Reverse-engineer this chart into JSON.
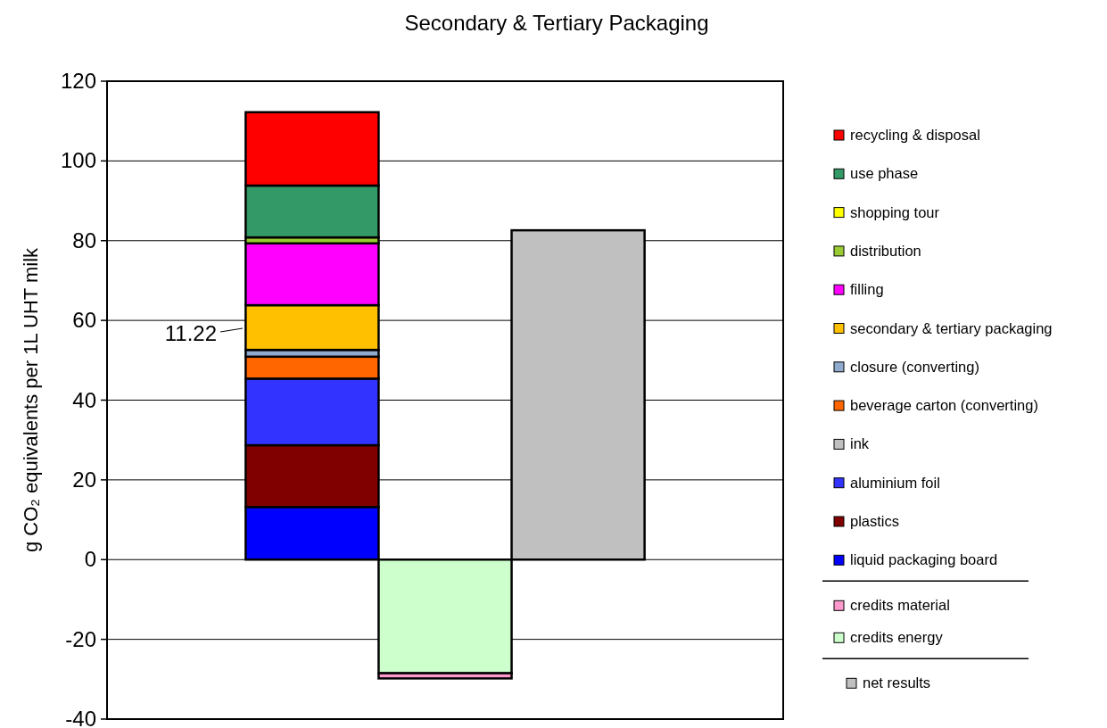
{
  "chart_data": {
    "type": "bar",
    "title": "Secondary & Tertiary Packaging",
    "ylabel": "g CO₂ equivalents per 1L UHT milk",
    "categories": [
      null,
      null,
      null
    ],
    "stacked": true,
    "ylim": [
      -40,
      120
    ],
    "yticks": [
      -40,
      -20,
      0,
      20,
      40,
      60,
      80,
      100,
      120
    ],
    "grid": "y",
    "legend": "right",
    "annotations": [
      "11.22"
    ],
    "series": [
      {
        "name": "liquid packaging board",
        "color": "#0000ff",
        "values": [
          13.2,
          null,
          null
        ]
      },
      {
        "name": "plastics",
        "color": "#800000",
        "values": [
          15.5,
          null,
          null
        ]
      },
      {
        "name": "aluminium foil",
        "color": "#3333ff",
        "values": [
          16.7,
          null,
          null
        ]
      },
      {
        "name": "ink",
        "color": "#c0c0c0",
        "values": [
          0,
          null,
          null
        ]
      },
      {
        "name": "beverage carton (converting)",
        "color": "#ff6600",
        "values": [
          5.5,
          null,
          null
        ]
      },
      {
        "name": "closure (converting)",
        "color": "#8faacc",
        "values": [
          1.7,
          null,
          null
        ]
      },
      {
        "name": "secondary & tertiary packaging",
        "color": "#ffc000",
        "values": [
          11.22,
          null,
          null
        ]
      },
      {
        "name": "filling",
        "color": "#ff00ff",
        "values": [
          15.5,
          null,
          null
        ]
      },
      {
        "name": "distribution",
        "color": "#99cc33",
        "values": [
          1.5,
          null,
          null
        ]
      },
      {
        "name": "shopping tour",
        "color": "#ffff00",
        "values": [
          0,
          null,
          null
        ]
      },
      {
        "name": "use phase",
        "color": "#339966",
        "values": [
          13.0,
          null,
          null
        ]
      },
      {
        "name": "recycling & disposal",
        "color": "#ff0000",
        "values": [
          18.4,
          null,
          null
        ]
      },
      {
        "name": "credits energy",
        "color": "#ccffcc",
        "values": [
          null,
          -28.5,
          null
        ]
      },
      {
        "name": "credits material",
        "color": "#ff99cc",
        "values": [
          null,
          -1.3,
          null
        ]
      },
      {
        "name": "net results",
        "color": "#c0c0c0",
        "values": [
          null,
          null,
          82.6
        ]
      }
    ]
  }
}
